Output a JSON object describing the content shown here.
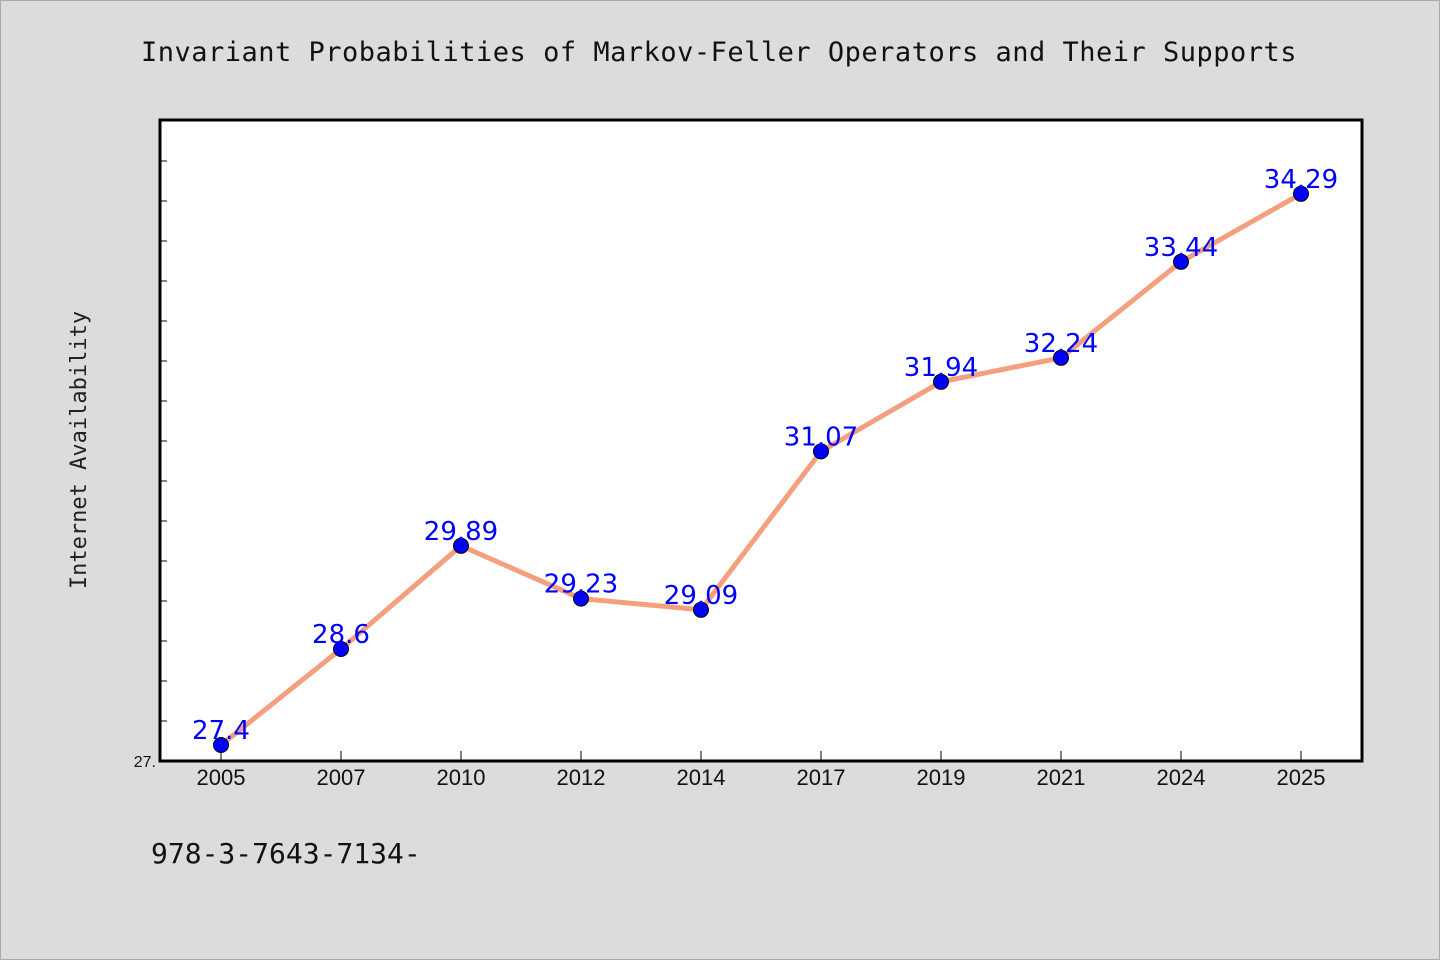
{
  "chart_data": {
    "type": "line",
    "title": "Invariant Probabilities of Markov-Feller Operators and Their Supports",
    "xlabel": "",
    "ylabel": "Internet Availability",
    "categories": [
      "2005",
      "2007",
      "2010",
      "2012",
      "2014",
      "2017",
      "2019",
      "2021",
      "2024",
      "2025"
    ],
    "series": [
      {
        "values": [
          27.4,
          28.6,
          29.89,
          29.23,
          29.09,
          31.07,
          31.94,
          32.24,
          33.44,
          34.29
        ]
      }
    ],
    "data_labels": [
      "27.4",
      "28.6",
      "29.89",
      "29.23",
      "29.09",
      "31.07",
      "31.94",
      "32.24",
      "33.44",
      "34.29"
    ],
    "y_tick_labels": [
      "27."
    ],
    "ylim": [
      27.2,
      35.2
    ],
    "grid": false,
    "legend": "none",
    "colors": {
      "line": "#f4a07f",
      "marker": "#0000ff",
      "label": "#0000ff",
      "plot_bg": "#ffffff",
      "page_bg": "#dcdcdc"
    }
  },
  "footer": {
    "isbn": "978-3-7643-7134-"
  }
}
